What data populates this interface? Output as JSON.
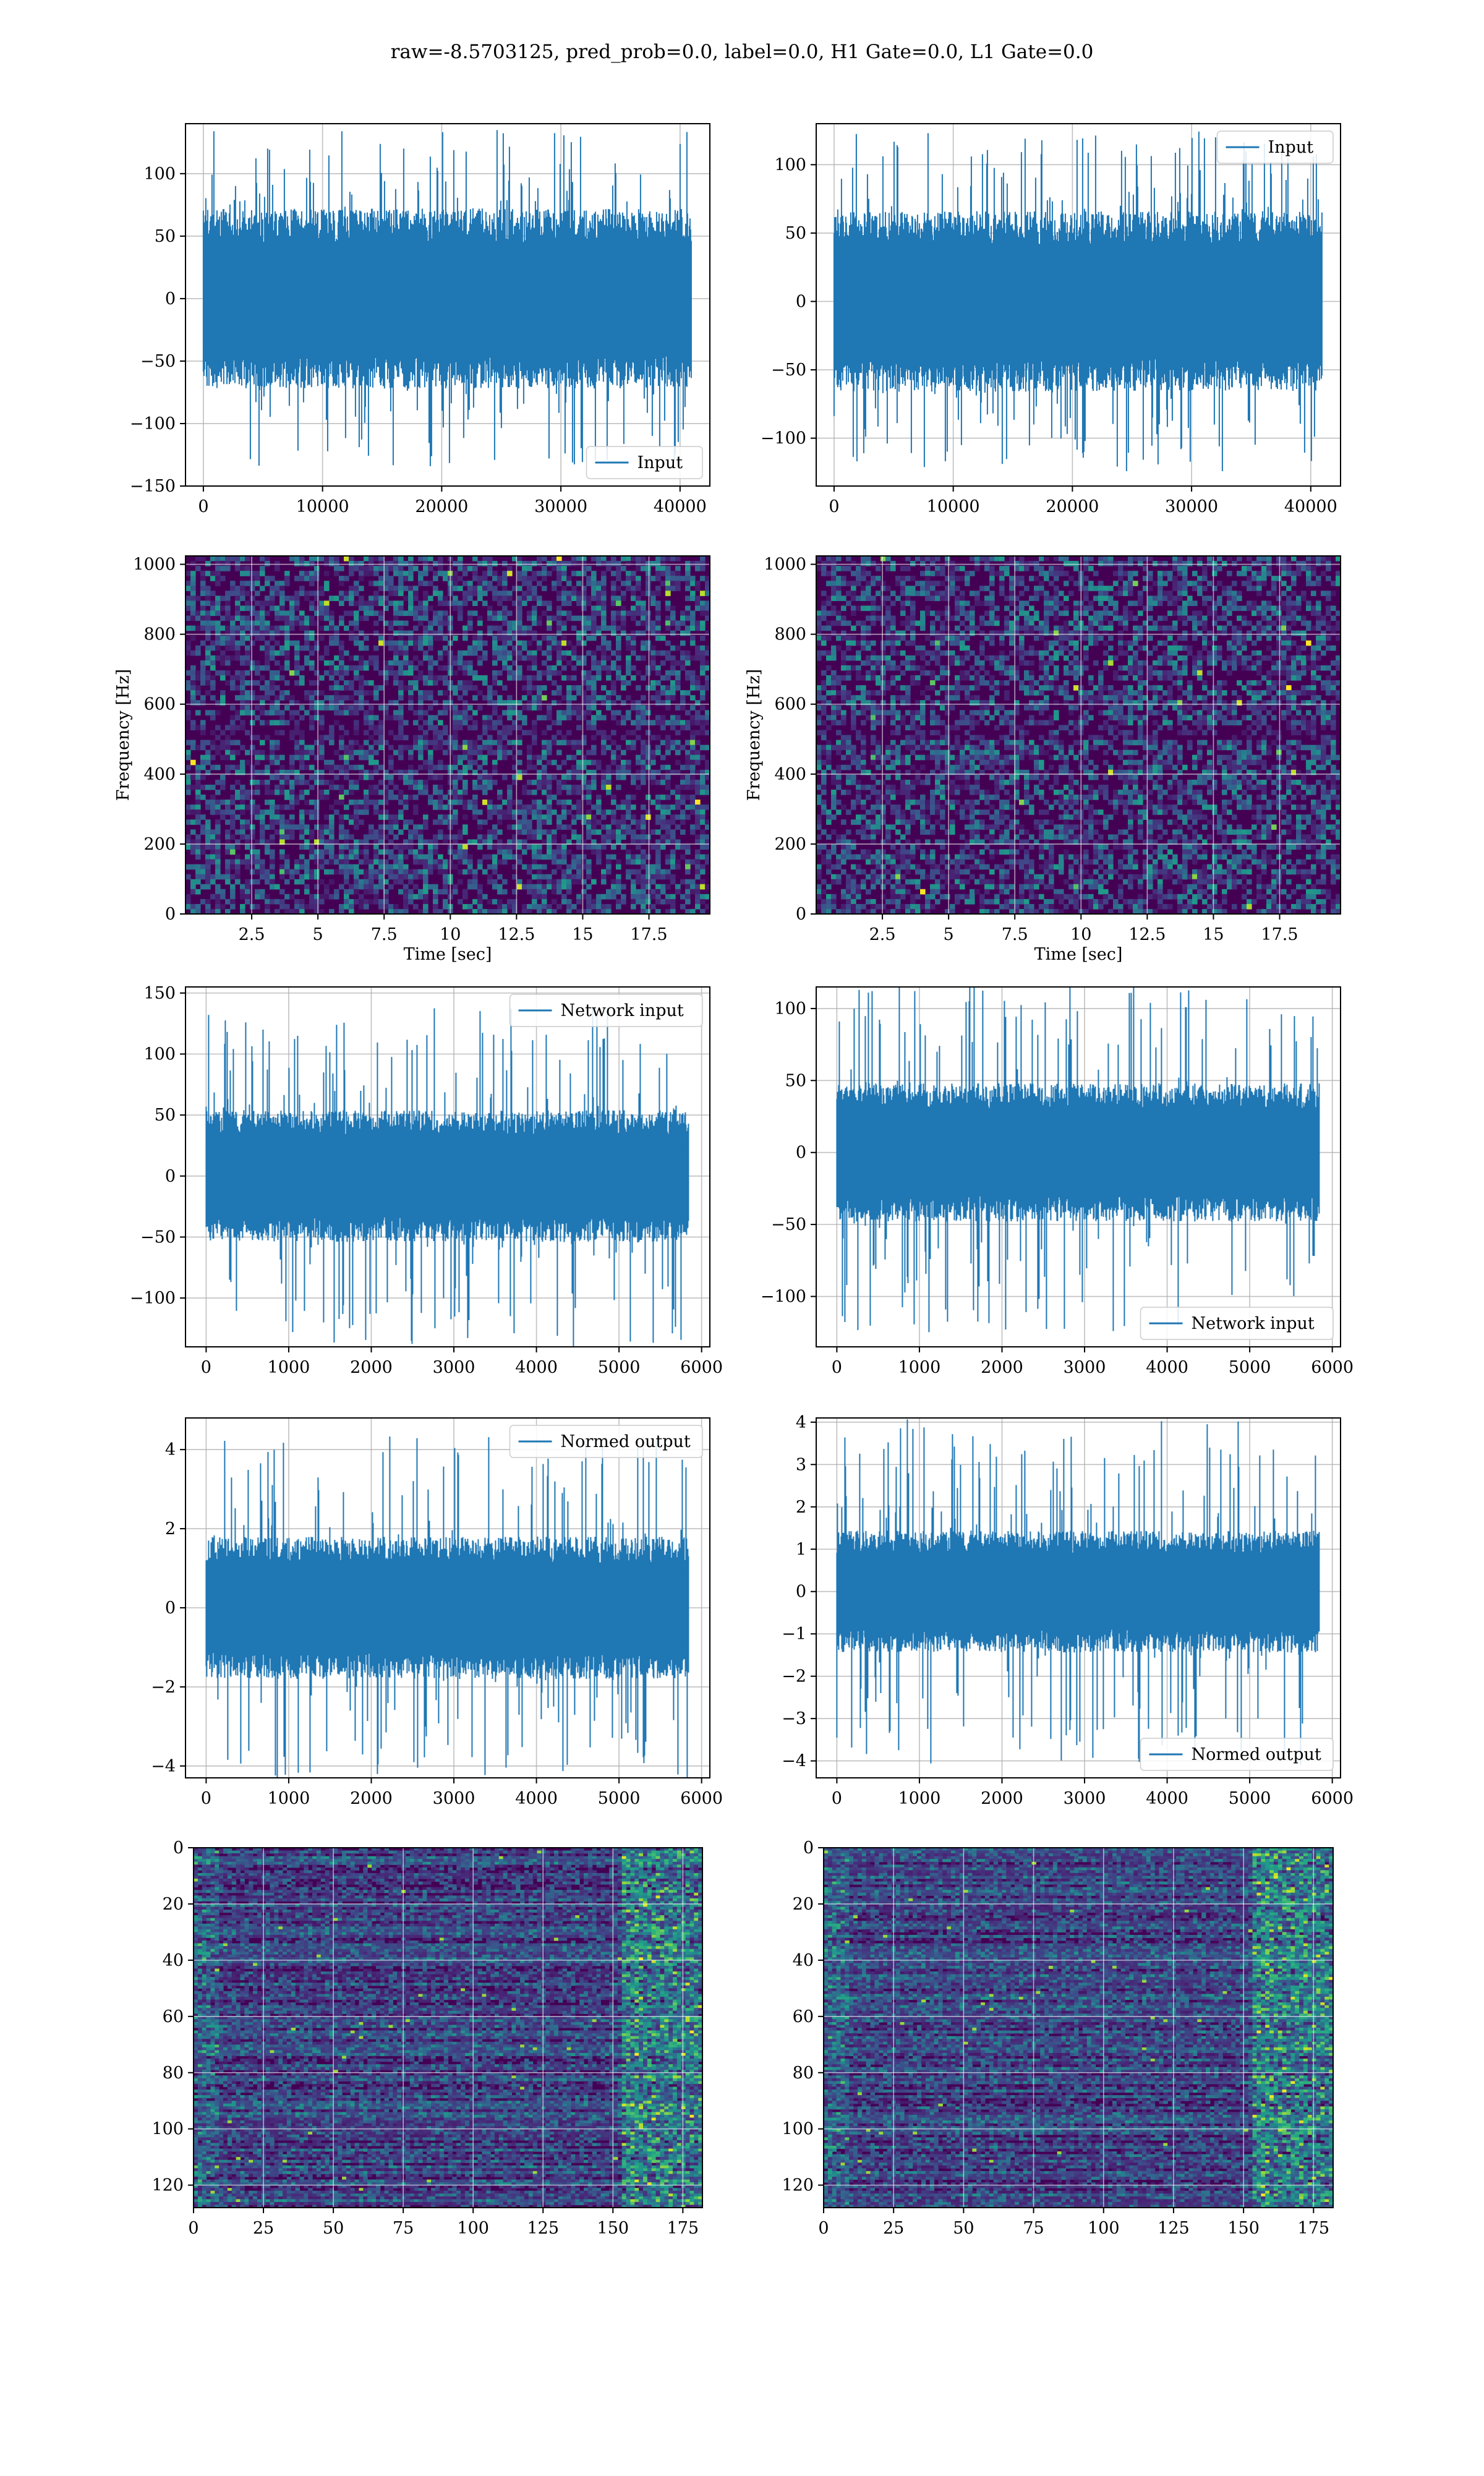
{
  "figure": {
    "title": "raw=-8.5703125, pred_prob=0.0, label=0.0, H1 Gate=0.0, L1 Gate=0.0",
    "colors": {
      "line": "#1f77b4",
      "grid": "#b0b0b0",
      "viridis_dark": "#440154"
    }
  },
  "chart_data": [
    {
      "id": "input-h1",
      "type": "line",
      "series": [
        {
          "name": "Input",
          "n_points": 40960,
          "amplitude_typical": 60,
          "amplitude_peak": 135
        }
      ],
      "xlim": [
        -1500,
        42500
      ],
      "ylim": [
        -150,
        140
      ],
      "xticks": [
        0,
        10000,
        20000,
        30000,
        40000
      ],
      "yticks": [
        -150,
        -100,
        -50,
        0,
        50,
        100
      ],
      "legend": "lower right",
      "grid": true
    },
    {
      "id": "input-l1",
      "type": "line",
      "series": [
        {
          "name": "Input",
          "n_points": 40960,
          "amplitude_typical": 55,
          "amplitude_peak": 125
        }
      ],
      "xlim": [
        -1500,
        42500
      ],
      "ylim": [
        -135,
        130
      ],
      "xticks": [
        0,
        10000,
        20000,
        30000,
        40000
      ],
      "yticks": [
        -100,
        -50,
        0,
        50,
        100
      ],
      "legend": "upper right",
      "grid": true
    },
    {
      "id": "spectrogram-h1",
      "type": "heatmap",
      "xlabel": "Time [sec]",
      "ylabel": "Frequency [Hz]",
      "xlim": [
        0,
        19.8
      ],
      "ylim": [
        0,
        1024
      ],
      "xticks": [
        2.5,
        5.0,
        7.5,
        10.0,
        12.5,
        15.0,
        17.5
      ],
      "yticks": [
        0,
        200,
        400,
        600,
        800,
        1000
      ],
      "colormap": "viridis",
      "grid": true
    },
    {
      "id": "spectrogram-l1",
      "type": "heatmap",
      "xlabel": "Time [sec]",
      "ylabel": "Frequency [Hz]",
      "xlim": [
        0,
        19.8
      ],
      "ylim": [
        0,
        1024
      ],
      "xticks": [
        2.5,
        5.0,
        7.5,
        10.0,
        12.5,
        15.0,
        17.5
      ],
      "yticks": [
        0,
        200,
        400,
        600,
        800,
        1000
      ],
      "colormap": "viridis",
      "grid": true
    },
    {
      "id": "network-input-h1",
      "type": "line",
      "series": [
        {
          "name": "Network input",
          "n_points": 5840,
          "amplitude_typical": 45,
          "amplitude_peak": 140
        }
      ],
      "xlim": [
        -250,
        6100
      ],
      "ylim": [
        -140,
        155
      ],
      "xticks": [
        0,
        1000,
        2000,
        3000,
        4000,
        5000,
        6000
      ],
      "yticks": [
        -100,
        -50,
        0,
        50,
        100,
        150
      ],
      "legend": "upper right",
      "grid": true
    },
    {
      "id": "network-input-l1",
      "type": "line",
      "series": [
        {
          "name": "Network input",
          "n_points": 5840,
          "amplitude_typical": 40,
          "amplitude_peak": 125
        }
      ],
      "xlim": [
        -250,
        6100
      ],
      "ylim": [
        -135,
        115
      ],
      "xticks": [
        0,
        1000,
        2000,
        3000,
        4000,
        5000,
        6000
      ],
      "yticks": [
        -100,
        -50,
        0,
        50,
        100
      ],
      "legend": "lower right",
      "grid": true
    },
    {
      "id": "normed-output-h1",
      "type": "line",
      "series": [
        {
          "name": "Normed output",
          "n_points": 5840,
          "amplitude_typical": 1.5,
          "amplitude_peak": 4.4
        }
      ],
      "xlim": [
        -250,
        6100
      ],
      "ylim": [
        -4.3,
        4.8
      ],
      "xticks": [
        0,
        1000,
        2000,
        3000,
        4000,
        5000,
        6000
      ],
      "yticks": [
        -4,
        -2,
        0,
        2,
        4
      ],
      "legend": "upper right",
      "grid": true
    },
    {
      "id": "normed-output-l1",
      "type": "line",
      "series": [
        {
          "name": "Normed output",
          "n_points": 5840,
          "amplitude_typical": 1.2,
          "amplitude_peak": 4.1
        }
      ],
      "xlim": [
        -250,
        6100
      ],
      "ylim": [
        -4.4,
        4.1
      ],
      "xticks": [
        0,
        1000,
        2000,
        3000,
        4000,
        5000,
        6000
      ],
      "yticks": [
        -4,
        -3,
        -2,
        -1,
        0,
        1,
        2,
        3,
        4
      ],
      "legend": "lower right",
      "grid": true
    },
    {
      "id": "features-h1",
      "type": "heatmap",
      "xlim": [
        0,
        182
      ],
      "ylim": [
        128,
        0
      ],
      "xticks": [
        0,
        25,
        50,
        75,
        100,
        125,
        150,
        175
      ],
      "yticks": [
        0,
        20,
        40,
        60,
        80,
        100,
        120
      ],
      "colormap": "viridis",
      "grid": true
    },
    {
      "id": "features-l1",
      "type": "heatmap",
      "xlim": [
        0,
        182
      ],
      "ylim": [
        128,
        0
      ],
      "xticks": [
        0,
        25,
        50,
        75,
        100,
        125,
        150,
        175
      ],
      "yticks": [
        0,
        20,
        40,
        60,
        80,
        100,
        120
      ],
      "colormap": "viridis",
      "grid": true
    }
  ]
}
